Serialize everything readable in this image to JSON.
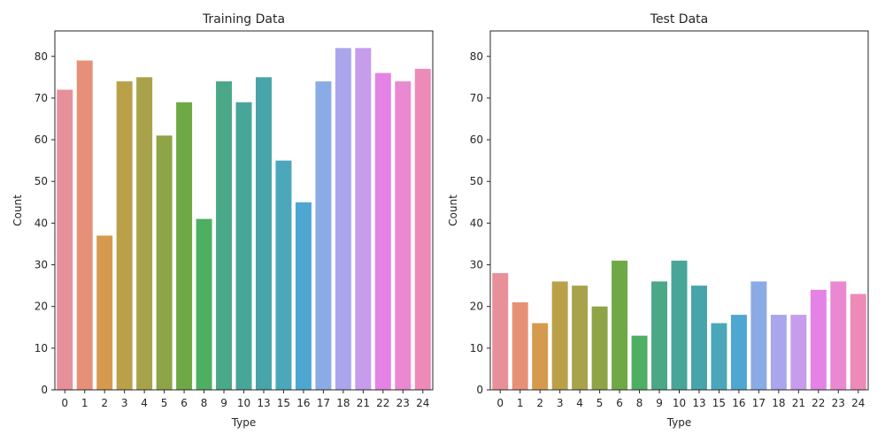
{
  "chart_data": [
    {
      "type": "bar",
      "title": "Training Data",
      "xlabel": "Type",
      "ylabel": "Count",
      "ylim": [
        0,
        86.1
      ],
      "yticks": [
        0,
        10,
        20,
        30,
        40,
        50,
        60,
        70,
        80
      ],
      "grid": false,
      "categories": [
        "0",
        "1",
        "2",
        "3",
        "4",
        "5",
        "6",
        "8",
        "9",
        "10",
        "13",
        "15",
        "16",
        "17",
        "18",
        "21",
        "22",
        "23",
        "24"
      ],
      "values": [
        72,
        79,
        37,
        74,
        75,
        61,
        69,
        41,
        74,
        69,
        75,
        55,
        45,
        74,
        82,
        82,
        76,
        74,
        77
      ]
    },
    {
      "type": "bar",
      "title": "Test Data",
      "xlabel": "Type",
      "ylabel": "Count",
      "ylim": [
        0,
        86.1
      ],
      "yticks": [
        0,
        10,
        20,
        30,
        40,
        50,
        60,
        70,
        80
      ],
      "grid": false,
      "categories": [
        "0",
        "1",
        "2",
        "3",
        "4",
        "5",
        "6",
        "8",
        "9",
        "10",
        "13",
        "15",
        "16",
        "17",
        "18",
        "21",
        "22",
        "23",
        "24"
      ],
      "values": [
        28,
        21,
        16,
        26,
        25,
        20,
        31,
        13,
        26,
        31,
        25,
        16,
        18,
        26,
        18,
        18,
        24,
        26,
        23
      ]
    }
  ],
  "colors": [
    "#e8909a",
    "#e69177",
    "#d59a4e",
    "#bba04a",
    "#a8a24b",
    "#8ea447",
    "#6ea946",
    "#4eaf62",
    "#4aa886",
    "#48a699",
    "#47a4a8",
    "#4aa8ba",
    "#4ea7d0",
    "#8aabe6",
    "#aaa6ec",
    "#c69ced",
    "#e482e6",
    "#ea89d1",
    "#ee8ab7"
  ]
}
